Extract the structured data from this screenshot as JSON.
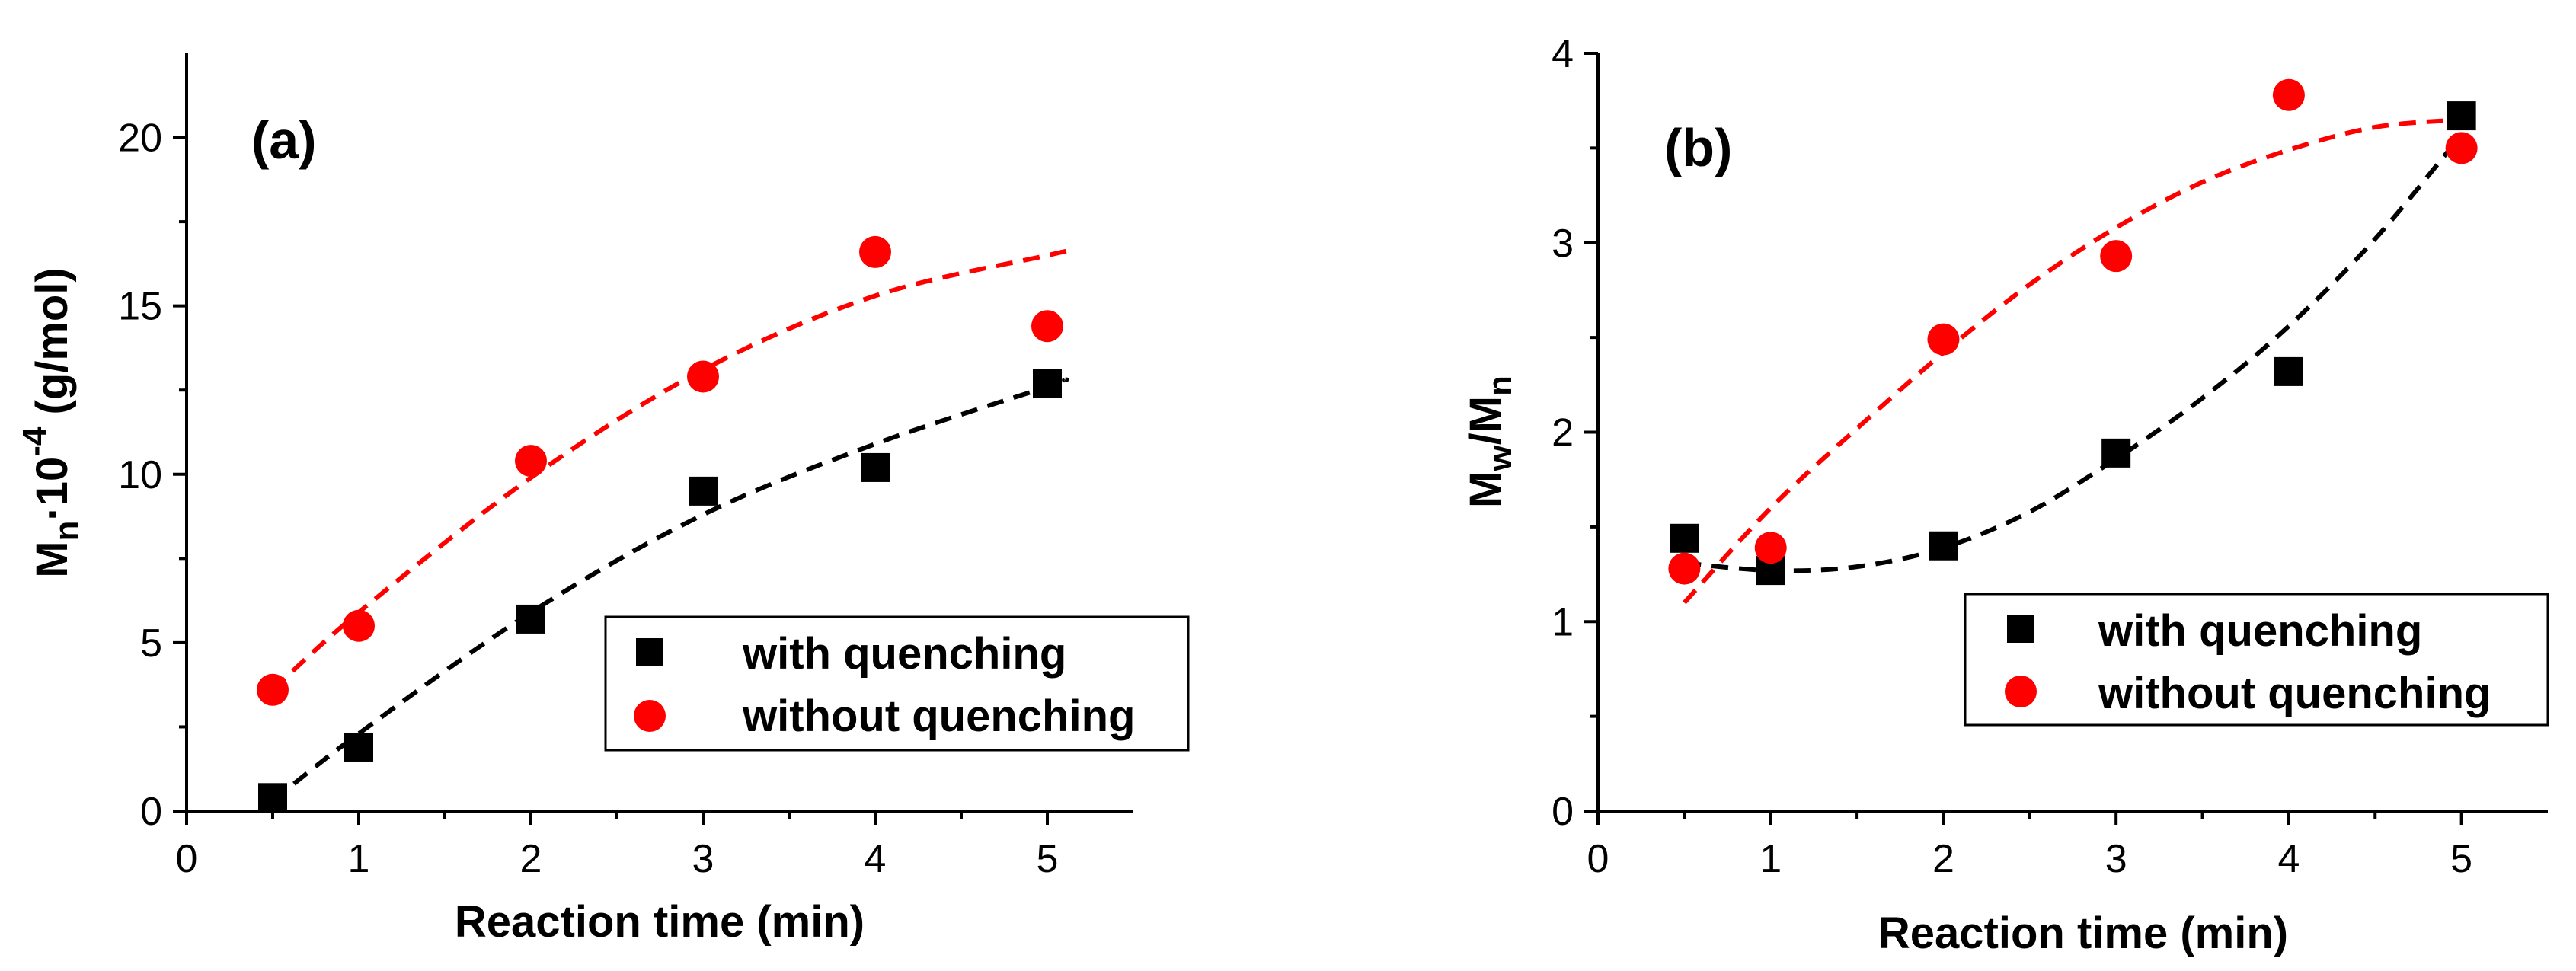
{
  "colors": {
    "quenching": "#000000",
    "no_quenching": "#ff0000"
  },
  "chart_data": [
    {
      "type": "scatter",
      "panel_label": "(a)",
      "xlabel": "Reaction time (min)",
      "ylabel": {
        "main1": "M",
        "sub1": "n",
        "main2": "·10",
        "sup": "-4",
        "main3": " (g/mol)"
      },
      "xlim": [
        0,
        5.5
      ],
      "ylim": [
        0,
        22.5
      ],
      "xticks": [
        0,
        1,
        2,
        3,
        4,
        5
      ],
      "yticks": [
        0,
        5,
        10,
        15,
        20
      ],
      "legend_position": "lower-right",
      "series": [
        {
          "name": "with quenching",
          "marker": "square",
          "color": "#000000",
          "x": [
            0.5,
            1,
            2,
            3,
            4,
            5
          ],
          "y": [
            0.4,
            1.9,
            5.7,
            9.5,
            10.2,
            12.7
          ],
          "fit": [
            0.5,
            1.0,
            2.0,
            3.0,
            4.0,
            5.0,
            5.1
          ],
          "fit_y": [
            0.3,
            2.3,
            5.9,
            8.8,
            10.9,
            12.6,
            12.8
          ]
        },
        {
          "name": "without quenching",
          "marker": "circle",
          "color": "#ff0000",
          "x": [
            0.5,
            1,
            2,
            3,
            4,
            5
          ],
          "y": [
            3.6,
            5.5,
            10.4,
            12.9,
            16.6,
            14.4
          ],
          "fit": [
            0.5,
            1.0,
            2.0,
            3.0,
            4.0,
            5.0,
            5.1
          ],
          "fit_y": [
            3.6,
            5.9,
            9.9,
            13.1,
            15.3,
            16.5,
            16.6
          ]
        }
      ]
    },
    {
      "type": "scatter",
      "panel_label": "(b)",
      "xlabel": "Reaction time (min)",
      "ylabel": {
        "main1": "M",
        "sub1": "w",
        "main2": "/M",
        "sub2": "n"
      },
      "xlim": [
        0,
        5.5
      ],
      "ylim": [
        0,
        4
      ],
      "xticks": [
        0,
        1,
        2,
        3,
        4,
        5
      ],
      "yticks": [
        0,
        1,
        2,
        3,
        4
      ],
      "legend_position": "right",
      "series": [
        {
          "name": "with quenching",
          "marker": "square",
          "color": "#000000",
          "x": [
            0.5,
            1,
            2,
            3,
            4,
            5
          ],
          "y": [
            1.44,
            1.27,
            1.4,
            1.89,
            2.32,
            3.67
          ],
          "fit": [
            0.5,
            1.0,
            1.5,
            2.0,
            2.5,
            3.0,
            3.5,
            4.0,
            4.5,
            5.0
          ],
          "fit_y": [
            1.31,
            1.27,
            1.29,
            1.39,
            1.58,
            1.86,
            2.18,
            2.56,
            3.02,
            3.57
          ]
        },
        {
          "name": "without quenching",
          "marker": "circle",
          "color": "#ff0000",
          "x": [
            0.5,
            1,
            2,
            3,
            4,
            5
          ],
          "y": [
            1.28,
            1.39,
            2.49,
            2.93,
            3.78,
            3.5
          ],
          "fit": [
            0.5,
            1.0,
            1.5,
            2.0,
            2.5,
            3.0,
            3.5,
            4.0,
            4.5,
            5.0
          ],
          "fit_y": [
            1.1,
            1.6,
            2.02,
            2.42,
            2.78,
            3.08,
            3.32,
            3.49,
            3.61,
            3.65
          ]
        }
      ]
    }
  ]
}
